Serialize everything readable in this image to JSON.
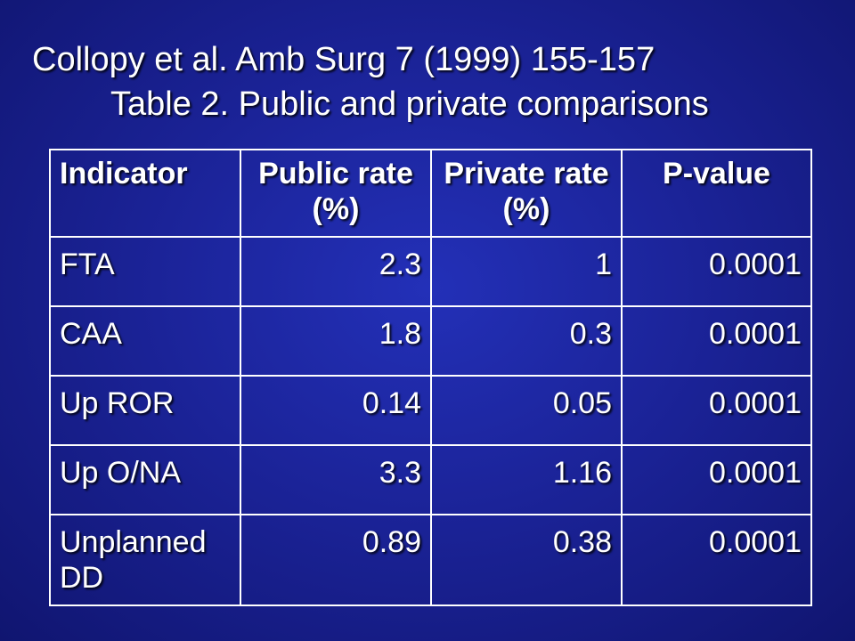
{
  "title": {
    "line1": "Collopy et al. Amb Surg 7 (1999) 155-157",
    "line2": "Table 2. Public and private comparisons"
  },
  "table": {
    "headers": [
      {
        "line1": "Indicator",
        "line2": ""
      },
      {
        "line1": "Public rate",
        "line2": "(%)"
      },
      {
        "line1": "Private rate",
        "line2": "(%)"
      },
      {
        "line1": "P-value",
        "line2": ""
      }
    ],
    "rows": [
      {
        "indicator": "FTA",
        "public": "2.3",
        "private": "1",
        "p": "0.0001"
      },
      {
        "indicator": "CAA",
        "public": "1.8",
        "private": "0.3",
        "p": "0.0001"
      },
      {
        "indicator": "Up ROR",
        "public": "0.14",
        "private": "0.05",
        "p": "0.0001"
      },
      {
        "indicator": "Up O/NA",
        "public": "3.3",
        "private": "1.16",
        "p": "0.0001"
      },
      {
        "indicator": "Unplanned DD",
        "public": "0.89",
        "private": "0.38",
        "p": "0.0001"
      }
    ]
  },
  "colors": {
    "background": "#1b2398",
    "text": "#ffffff",
    "border": "#ffffff"
  }
}
